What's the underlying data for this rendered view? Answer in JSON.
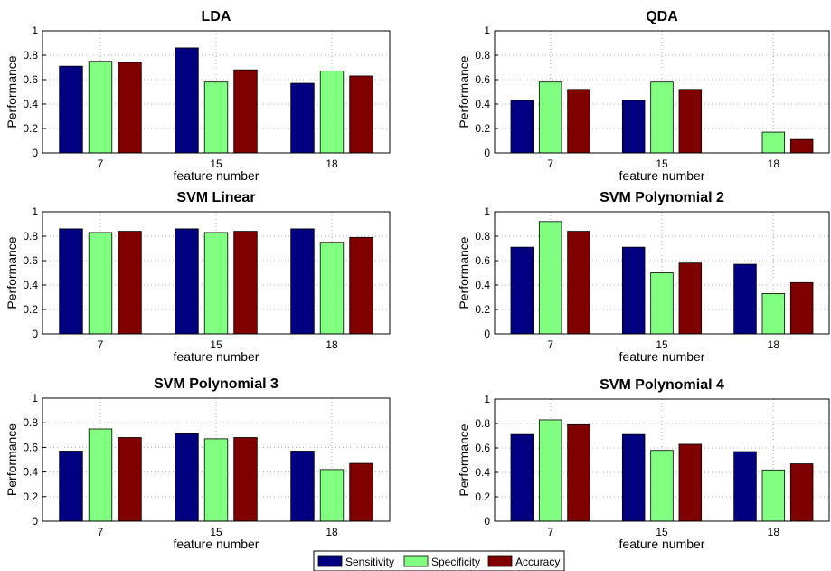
{
  "legend": {
    "placement": "bottom-center",
    "entries": [
      {
        "name": "Sensitivity",
        "color": "#000080"
      },
      {
        "name": "Specificity",
        "color": "#80ff80"
      },
      {
        "name": "Accuracy",
        "color": "#800000"
      }
    ]
  },
  "chart_data": [
    {
      "type": "bar",
      "title": "LDA",
      "xlabel": "feature number",
      "ylabel": "Performance",
      "ylim": [
        0,
        1
      ],
      "yticks": [
        "0",
        "0.2",
        "0.4",
        "0.6",
        "0.8",
        "1"
      ],
      "grid": true,
      "categories": [
        "7",
        "15",
        "18"
      ],
      "series": [
        {
          "name": "Sensitivity",
          "values": [
            0.71,
            0.86,
            0.57
          ]
        },
        {
          "name": "Specificity",
          "values": [
            0.75,
            0.58,
            0.67
          ]
        },
        {
          "name": "Accuracy",
          "values": [
            0.74,
            0.68,
            0.63
          ]
        }
      ]
    },
    {
      "type": "bar",
      "title": "QDA",
      "xlabel": "feature number",
      "ylabel": "Performance",
      "ylim": [
        0,
        1
      ],
      "yticks": [
        "0",
        "0.2",
        "0.4",
        "0.6",
        "0.8",
        "1"
      ],
      "grid": true,
      "categories": [
        "7",
        "15",
        "18"
      ],
      "series": [
        {
          "name": "Sensitivity",
          "values": [
            0.43,
            0.43,
            0
          ]
        },
        {
          "name": "Specificity",
          "values": [
            0.58,
            0.58,
            0.17
          ]
        },
        {
          "name": "Accuracy",
          "values": [
            0.52,
            0.52,
            0.11
          ]
        }
      ]
    },
    {
      "type": "bar",
      "title": "SVM Linear",
      "xlabel": "feature number",
      "ylabel": "Performance",
      "ylim": [
        0,
        1
      ],
      "yticks": [
        "0",
        "0.2",
        "0.4",
        "0.6",
        "0.8",
        "1"
      ],
      "grid": true,
      "categories": [
        "7",
        "15",
        "18"
      ],
      "series": [
        {
          "name": "Sensitivity",
          "values": [
            0.86,
            0.86,
            0.86
          ]
        },
        {
          "name": "Specificity",
          "values": [
            0.83,
            0.83,
            0.75
          ]
        },
        {
          "name": "Accuracy",
          "values": [
            0.84,
            0.84,
            0.79
          ]
        }
      ]
    },
    {
      "type": "bar",
      "title": "SVM Polynomial 2",
      "xlabel": "feature number",
      "ylabel": "Performance",
      "ylim": [
        0,
        1
      ],
      "yticks": [
        "0",
        "0.2",
        "0.4",
        "0.6",
        "0.8",
        "1"
      ],
      "grid": true,
      "categories": [
        "7",
        "15",
        "18"
      ],
      "series": [
        {
          "name": "Sensitivity",
          "values": [
            0.71,
            0.71,
            0.57
          ]
        },
        {
          "name": "Specificity",
          "values": [
            0.92,
            0.5,
            0.33
          ]
        },
        {
          "name": "Accuracy",
          "values": [
            0.84,
            0.58,
            0.42
          ]
        }
      ]
    },
    {
      "type": "bar",
      "title": "SVM Polynomial 3",
      "xlabel": "feature number",
      "ylabel": "Performance",
      "ylim": [
        0,
        1
      ],
      "yticks": [
        "0",
        "0.2",
        "0.4",
        "0.6",
        "0.8",
        "1"
      ],
      "grid": true,
      "categories": [
        "7",
        "15",
        "18"
      ],
      "series": [
        {
          "name": "Sensitivity",
          "values": [
            0.57,
            0.71,
            0.57
          ]
        },
        {
          "name": "Specificity",
          "values": [
            0.75,
            0.67,
            0.42
          ]
        },
        {
          "name": "Accuracy",
          "values": [
            0.68,
            0.68,
            0.47
          ]
        }
      ]
    },
    {
      "type": "bar",
      "title": "SVM Polynomial 4",
      "xlabel": "feature number",
      "ylabel": "Performance",
      "ylim": [
        0,
        1
      ],
      "yticks": [
        "0",
        "0.2",
        "0.4",
        "0.6",
        "0.8",
        "1"
      ],
      "grid": true,
      "categories": [
        "7",
        "15",
        "18"
      ],
      "series": [
        {
          "name": "Sensitivity",
          "values": [
            0.71,
            0.71,
            0.57
          ]
        },
        {
          "name": "Specificity",
          "values": [
            0.83,
            0.58,
            0.42
          ]
        },
        {
          "name": "Accuracy",
          "values": [
            0.79,
            0.63,
            0.47
          ]
        }
      ]
    }
  ]
}
